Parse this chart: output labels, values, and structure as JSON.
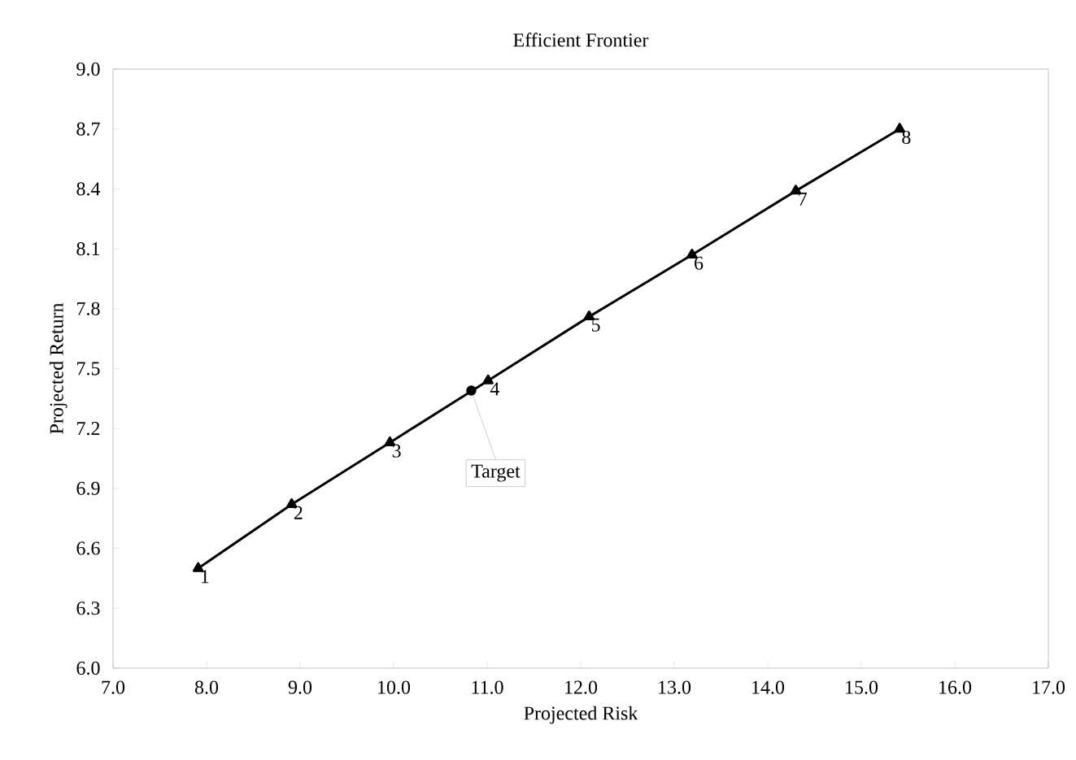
{
  "chart_data": {
    "type": "line",
    "title": "Efficient Frontier",
    "xlabel": "Projected Risk",
    "ylabel": "Projected Return",
    "xlim": [
      7.0,
      17.0
    ],
    "ylim": [
      6.0,
      9.0
    ],
    "xticks": [
      {
        "value": 7,
        "label": "7.0"
      },
      {
        "value": 8,
        "label": "8.0"
      },
      {
        "value": 9,
        "label": "9.0"
      },
      {
        "value": 10,
        "label": "10.0"
      },
      {
        "value": 11,
        "label": "11.0"
      },
      {
        "value": 12,
        "label": "12.0"
      },
      {
        "value": 13,
        "label": "13.0"
      },
      {
        "value": 14,
        "label": "14.0"
      },
      {
        "value": 15,
        "label": "15.0"
      },
      {
        "value": 16,
        "label": "16.0"
      },
      {
        "value": 17,
        "label": "17.0"
      }
    ],
    "yticks": [
      {
        "value": 6,
        "label": "6.0"
      },
      6.3,
      6.6,
      6.9,
      7.2,
      7.5,
      7.8,
      8.1,
      8.4,
      8.7,
      {
        "value": 9,
        "label": "9.0"
      }
    ],
    "series": [
      {
        "marker": "triangle",
        "color": "#000000",
        "x": [
          7.91,
          8.91,
          9.96,
          11.01,
          12.09,
          13.19,
          14.3,
          15.41
        ],
        "values": [
          6.5,
          6.82,
          7.13,
          7.44,
          7.76,
          8.07,
          8.39,
          8.7
        ]
      },
      {
        "type": "scatter",
        "marker": "circle",
        "color": "#000000",
        "x": [
          10.83
        ],
        "values": [
          7.39
        ]
      }
    ],
    "annotations": [
      {
        "text": "1",
        "x": 7.91,
        "y": 6.5
      },
      {
        "text": "2",
        "x": 8.91,
        "y": 6.82
      },
      {
        "text": "3",
        "x": 9.96,
        "y": 7.13
      },
      {
        "text": "4",
        "x": 11.01,
        "y": 7.44
      },
      {
        "text": "5",
        "x": 12.09,
        "y": 7.76
      },
      {
        "text": "6",
        "x": 13.19,
        "y": 8.07
      },
      {
        "text": "7",
        "x": 14.3,
        "y": 8.39
      },
      {
        "text": "8",
        "x": 15.41,
        "y": 8.7
      },
      {
        "text": "Target",
        "x": 10.83,
        "y": 7.39
      }
    ]
  }
}
